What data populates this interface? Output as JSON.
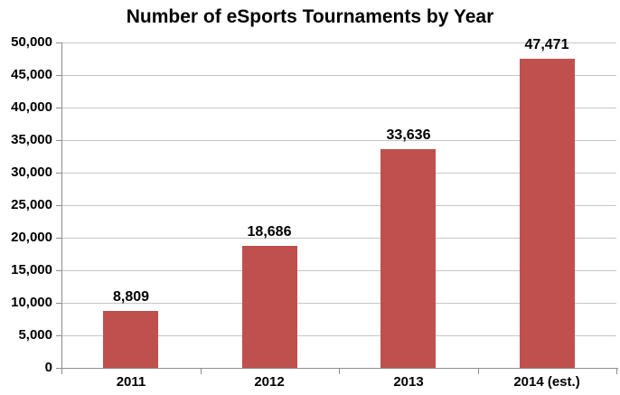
{
  "title": "Number of eSports Tournaments by Year",
  "colors": {
    "bar_fill": "#c0504d",
    "gridline": "#c6c6c6",
    "axis_line": "#8c8c8c",
    "text": "#000000",
    "background": "#ffffff"
  },
  "chart_data": {
    "type": "bar",
    "title": "Number of eSports Tournaments by Year",
    "categories": [
      "2011",
      "2012",
      "2013",
      "2014 (est.)"
    ],
    "values": [
      8809,
      18686,
      33636,
      47471
    ],
    "data_labels": [
      "8,809",
      "18,686",
      "33,636",
      "47,471"
    ],
    "xlabel": "",
    "ylabel": "",
    "ylim": [
      0,
      50000
    ],
    "ytick_interval": 5000,
    "ytick_labels": [
      "0",
      "5,000",
      "10,000",
      "15,000",
      "20,000",
      "25,000",
      "30,000",
      "35,000",
      "40,000",
      "45,000",
      "50,000"
    ],
    "grid": true,
    "legend": false,
    "data_label_position": "outside-end"
  }
}
